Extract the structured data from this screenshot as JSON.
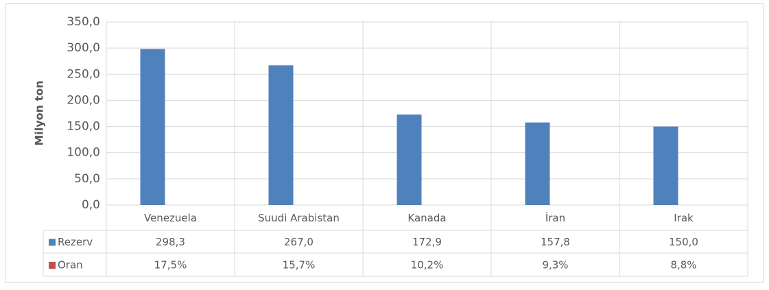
{
  "chart_data": {
    "type": "bar",
    "categories": [
      "Venezuela",
      "Suudi Arabistan",
      "Kanada",
      "İran",
      "Irak"
    ],
    "y_label": "Milyon ton",
    "series": [
      {
        "name": "Rezerv",
        "color": "#4f81bd",
        "values": [
          298.3,
          267.0,
          172.9,
          157.8,
          150.0
        ],
        "value_labels": [
          "298,3",
          "267,0",
          "172,9",
          "157,8",
          "150,0"
        ],
        "plotted": true
      },
      {
        "name": "Oran",
        "color": "#c0504d",
        "values": [
          17.5,
          15.7,
          10.2,
          9.3,
          8.8
        ],
        "value_labels": [
          "17,5%",
          "15,7%",
          "10,2%",
          "9,3%",
          "8,8%"
        ],
        "plotted": false
      }
    ],
    "ylim": [
      0,
      350
    ],
    "yticks": [
      {
        "value": 0,
        "label": "0,0"
      },
      {
        "value": 50,
        "label": "50,0"
      },
      {
        "value": 100,
        "label": "100,0"
      },
      {
        "value": 150,
        "label": "150,0"
      },
      {
        "value": 200,
        "label": "200,0"
      },
      {
        "value": 250,
        "label": "250,0"
      },
      {
        "value": 300,
        "label": "300,0"
      },
      {
        "value": 350,
        "label": "350,0"
      }
    ],
    "grid": true,
    "data_table": true
  }
}
